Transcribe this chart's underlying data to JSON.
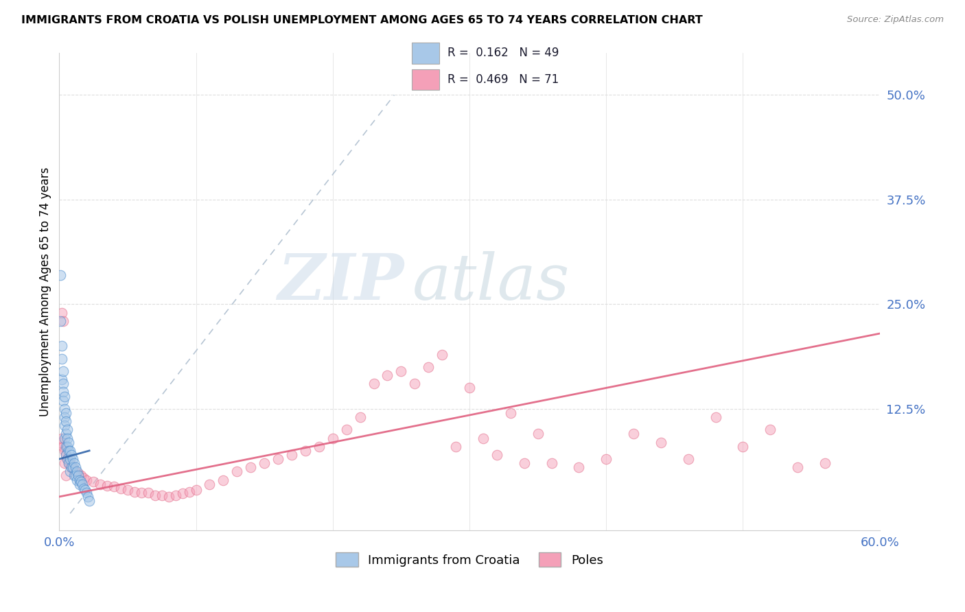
{
  "title": "IMMIGRANTS FROM CROATIA VS POLISH UNEMPLOYMENT AMONG AGES 65 TO 74 YEARS CORRELATION CHART",
  "source": "Source: ZipAtlas.com",
  "ylabel": "Unemployment Among Ages 65 to 74 years",
  "xlim": [
    0.0,
    0.6
  ],
  "ylim": [
    -0.02,
    0.55
  ],
  "xticks": [
    0.0,
    0.1,
    0.2,
    0.3,
    0.4,
    0.5,
    0.6
  ],
  "yticks_right": [
    0.0,
    0.125,
    0.25,
    0.375,
    0.5
  ],
  "ytick_right_labels": [
    "",
    "12.5%",
    "25.0%",
    "37.5%",
    "50.0%"
  ],
  "legend_r1_val": "0.162",
  "legend_n1_val": "49",
  "legend_r2_val": "0.469",
  "legend_n2_val": "71",
  "watermark_zip": "ZIP",
  "watermark_atlas": "atlas",
  "blue_color": "#a8c8e8",
  "pink_color": "#f4a0b8",
  "blue_line_color": "#4488cc",
  "blue_trend_line_color": "#3366aa",
  "pink_line_color": "#e06080",
  "croatia_scatter_x": [
    0.001,
    0.001,
    0.002,
    0.002,
    0.002,
    0.003,
    0.003,
    0.003,
    0.003,
    0.004,
    0.004,
    0.004,
    0.004,
    0.004,
    0.005,
    0.005,
    0.005,
    0.005,
    0.005,
    0.006,
    0.006,
    0.006,
    0.006,
    0.007,
    0.007,
    0.007,
    0.008,
    0.008,
    0.008,
    0.009,
    0.009,
    0.01,
    0.01,
    0.011,
    0.011,
    0.012,
    0.012,
    0.013,
    0.013,
    0.014,
    0.015,
    0.015,
    0.016,
    0.017,
    0.018,
    0.019,
    0.02,
    0.021,
    0.022
  ],
  "croatia_scatter_y": [
    0.285,
    0.23,
    0.2,
    0.185,
    0.16,
    0.17,
    0.155,
    0.145,
    0.135,
    0.14,
    0.125,
    0.115,
    0.105,
    0.09,
    0.12,
    0.11,
    0.095,
    0.08,
    0.07,
    0.1,
    0.09,
    0.08,
    0.065,
    0.085,
    0.075,
    0.06,
    0.075,
    0.065,
    0.05,
    0.07,
    0.055,
    0.065,
    0.055,
    0.06,
    0.045,
    0.055,
    0.045,
    0.05,
    0.04,
    0.045,
    0.04,
    0.035,
    0.038,
    0.035,
    0.03,
    0.028,
    0.025,
    0.02,
    0.015
  ],
  "croatia_flat_trend_x": [
    0.0,
    0.022
  ],
  "croatia_flat_trend_y": [
    0.065,
    0.075
  ],
  "croatia_dashed_trend_x": [
    0.008,
    0.245
  ],
  "croatia_dashed_trend_y": [
    0.0,
    0.5
  ],
  "poles_scatter_x": [
    0.001,
    0.002,
    0.003,
    0.004,
    0.005,
    0.006,
    0.007,
    0.008,
    0.009,
    0.01,
    0.012,
    0.014,
    0.016,
    0.018,
    0.02,
    0.025,
    0.03,
    0.035,
    0.04,
    0.045,
    0.05,
    0.055,
    0.06,
    0.065,
    0.07,
    0.075,
    0.08,
    0.085,
    0.09,
    0.095,
    0.1,
    0.11,
    0.12,
    0.13,
    0.14,
    0.15,
    0.16,
    0.17,
    0.18,
    0.19,
    0.2,
    0.21,
    0.22,
    0.23,
    0.24,
    0.25,
    0.26,
    0.27,
    0.28,
    0.29,
    0.3,
    0.31,
    0.32,
    0.33,
    0.34,
    0.35,
    0.36,
    0.38,
    0.4,
    0.42,
    0.44,
    0.46,
    0.48,
    0.5,
    0.52,
    0.54,
    0.56,
    0.002,
    0.003,
    0.004,
    0.005
  ],
  "poles_scatter_y": [
    0.085,
    0.09,
    0.08,
    0.075,
    0.07,
    0.065,
    0.06,
    0.06,
    0.055,
    0.055,
    0.05,
    0.048,
    0.045,
    0.042,
    0.04,
    0.038,
    0.035,
    0.033,
    0.032,
    0.03,
    0.028,
    0.026,
    0.025,
    0.025,
    0.022,
    0.022,
    0.02,
    0.022,
    0.024,
    0.026,
    0.028,
    0.035,
    0.04,
    0.05,
    0.055,
    0.06,
    0.065,
    0.07,
    0.075,
    0.08,
    0.09,
    0.1,
    0.115,
    0.155,
    0.165,
    0.17,
    0.155,
    0.175,
    0.19,
    0.08,
    0.15,
    0.09,
    0.07,
    0.12,
    0.06,
    0.095,
    0.06,
    0.055,
    0.065,
    0.095,
    0.085,
    0.065,
    0.115,
    0.08,
    0.1,
    0.055,
    0.06,
    0.24,
    0.23,
    0.06,
    0.045
  ],
  "poles_trend_x": [
    0.0,
    0.6
  ],
  "poles_trend_y_start": 0.02,
  "poles_trend_y_end": 0.215,
  "background_color": "#ffffff",
  "grid_color": "#dddddd"
}
